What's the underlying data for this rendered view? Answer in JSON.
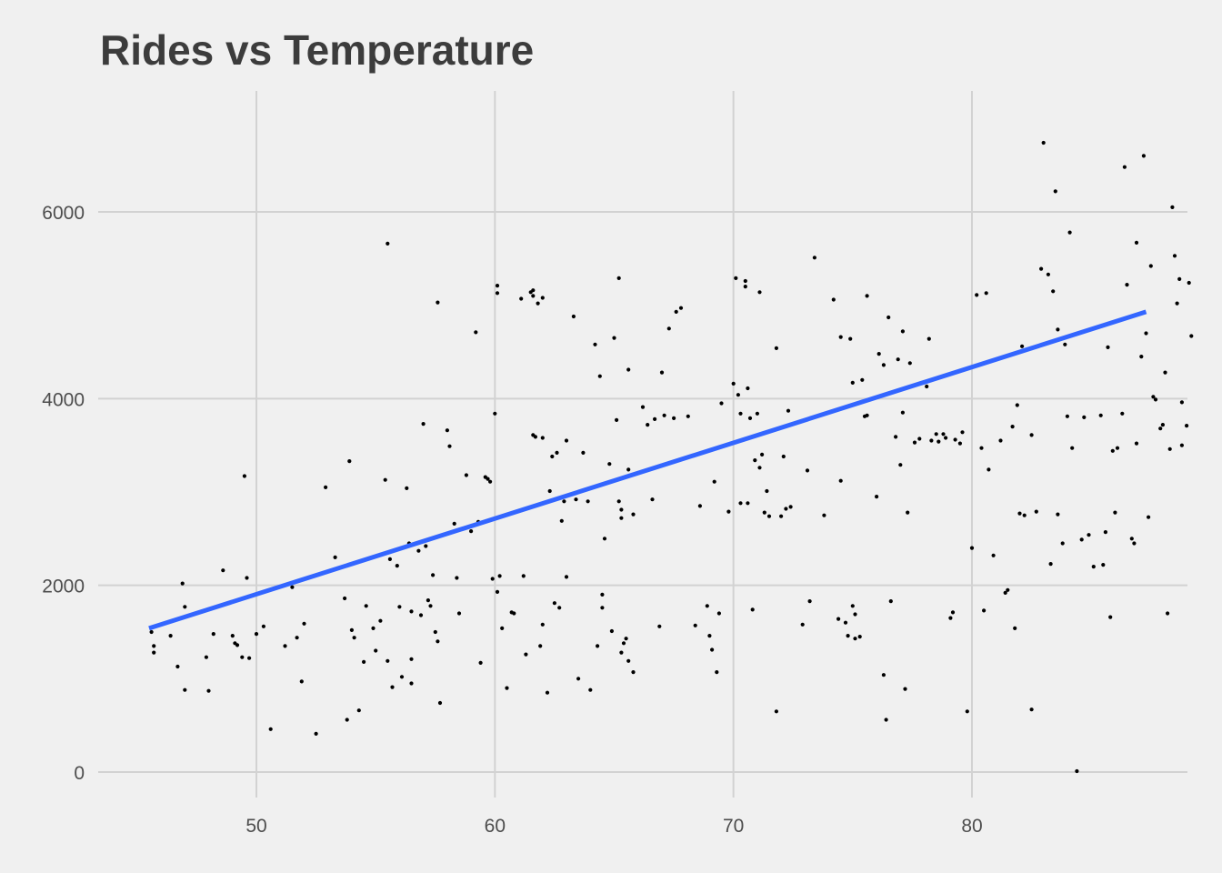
{
  "chart_data": {
    "type": "scatter",
    "title": "Rides vs Temperature",
    "xlabel": "",
    "ylabel": "",
    "xlim": [
      44,
      89
    ],
    "ylim": [
      -250,
      7550
    ],
    "x_ticks": [
      50,
      60,
      70,
      80
    ],
    "y_ticks": [
      0,
      2000,
      4000,
      6000
    ],
    "grid": true,
    "legend": "none",
    "colors": {
      "background": "#F0F0F0",
      "grid": "#D2D2D2",
      "points": "#000000",
      "trend": "#3366FF",
      "title": "#3C3C3C",
      "ticks": "#4D4D4D"
    },
    "trend_line": {
      "x": [
        45.5,
        87.3
      ],
      "y": [
        1540,
        4930
      ]
    },
    "points": [
      [
        45.6,
        1500
      ],
      [
        45.7,
        1350
      ],
      [
        45.7,
        1280
      ],
      [
        46.4,
        1460
      ],
      [
        46.7,
        1130
      ],
      [
        46.9,
        2020
      ],
      [
        47.0,
        1770
      ],
      [
        47.0,
        880
      ],
      [
        47.9,
        1230
      ],
      [
        48.0,
        870
      ],
      [
        48.2,
        1480
      ],
      [
        48.6,
        2160
      ],
      [
        49.0,
        1460
      ],
      [
        49.1,
        1380
      ],
      [
        49.2,
        1360
      ],
      [
        49.4,
        1230
      ],
      [
        49.5,
        3170
      ],
      [
        49.6,
        2080
      ],
      [
        49.7,
        1220
      ],
      [
        50.0,
        1480
      ],
      [
        50.3,
        1560
      ],
      [
        50.6,
        460
      ],
      [
        51.2,
        1350
      ],
      [
        51.5,
        1980
      ],
      [
        51.7,
        1440
      ],
      [
        51.9,
        970
      ],
      [
        52.0,
        1590
      ],
      [
        52.5,
        410
      ],
      [
        52.9,
        3050
      ],
      [
        53.3,
        2300
      ],
      [
        53.7,
        1860
      ],
      [
        53.8,
        560
      ],
      [
        53.9,
        3330
      ],
      [
        54.0,
        1520
      ],
      [
        54.1,
        1440
      ],
      [
        54.3,
        660
      ],
      [
        54.5,
        1180
      ],
      [
        54.6,
        1780
      ],
      [
        54.9,
        1540
      ],
      [
        55.0,
        1300
      ],
      [
        55.2,
        1620
      ],
      [
        55.4,
        3130
      ],
      [
        55.5,
        1190
      ],
      [
        55.5,
        5660
      ],
      [
        55.6,
        2280
      ],
      [
        55.7,
        910
      ],
      [
        55.9,
        2210
      ],
      [
        56.0,
        1770
      ],
      [
        56.1,
        1020
      ],
      [
        56.3,
        3040
      ],
      [
        56.4,
        2450
      ],
      [
        56.5,
        1210
      ],
      [
        56.5,
        1720
      ],
      [
        56.5,
        950
      ],
      [
        56.8,
        2370
      ],
      [
        56.9,
        1680
      ],
      [
        57.0,
        3730
      ],
      [
        57.1,
        2420
      ],
      [
        57.2,
        1840
      ],
      [
        57.3,
        1780
      ],
      [
        57.4,
        2110
      ],
      [
        57.5,
        1500
      ],
      [
        57.6,
        5030
      ],
      [
        57.6,
        1400
      ],
      [
        57.7,
        740
      ],
      [
        58.0,
        3660
      ],
      [
        58.1,
        3490
      ],
      [
        58.3,
        2660
      ],
      [
        58.4,
        2080
      ],
      [
        58.5,
        1700
      ],
      [
        58.8,
        3180
      ],
      [
        59.0,
        2580
      ],
      [
        59.2,
        4710
      ],
      [
        59.3,
        2680
      ],
      [
        59.4,
        1170
      ],
      [
        59.6,
        3160
      ],
      [
        59.7,
        3140
      ],
      [
        59.8,
        3110
      ],
      [
        59.9,
        2070
      ],
      [
        60.0,
        3840
      ],
      [
        60.1,
        5210
      ],
      [
        60.1,
        5130
      ],
      [
        60.1,
        1930
      ],
      [
        60.2,
        2100
      ],
      [
        60.3,
        1540
      ],
      [
        60.5,
        900
      ],
      [
        60.7,
        1710
      ],
      [
        60.8,
        1700
      ],
      [
        61.1,
        5070
      ],
      [
        61.2,
        2100
      ],
      [
        61.3,
        1260
      ],
      [
        61.5,
        5140
      ],
      [
        61.6,
        5160
      ],
      [
        61.6,
        3610
      ],
      [
        61.6,
        5100
      ],
      [
        61.7,
        3590
      ],
      [
        61.8,
        5020
      ],
      [
        61.9,
        1350
      ],
      [
        62.0,
        5080
      ],
      [
        62.0,
        3580
      ],
      [
        62.0,
        1580
      ],
      [
        62.2,
        850
      ],
      [
        62.3,
        3010
      ],
      [
        62.4,
        3380
      ],
      [
        62.5,
        1810
      ],
      [
        62.6,
        3420
      ],
      [
        62.7,
        1760
      ],
      [
        62.8,
        2690
      ],
      [
        62.9,
        2900
      ],
      [
        63.0,
        2090
      ],
      [
        63.0,
        3550
      ],
      [
        63.3,
        4880
      ],
      [
        63.4,
        2920
      ],
      [
        63.5,
        1000
      ],
      [
        63.7,
        3420
      ],
      [
        63.9,
        2900
      ],
      [
        64.0,
        880
      ],
      [
        64.2,
        4580
      ],
      [
        64.3,
        1350
      ],
      [
        64.4,
        4240
      ],
      [
        64.5,
        1900
      ],
      [
        64.5,
        1760
      ],
      [
        64.6,
        2500
      ],
      [
        64.8,
        3300
      ],
      [
        64.9,
        1510
      ],
      [
        65.0,
        4650
      ],
      [
        65.1,
        3770
      ],
      [
        65.2,
        2900
      ],
      [
        65.2,
        5290
      ],
      [
        65.3,
        2810
      ],
      [
        65.3,
        2720
      ],
      [
        65.3,
        1280
      ],
      [
        65.4,
        1380
      ],
      [
        65.5,
        1430
      ],
      [
        65.6,
        1190
      ],
      [
        65.6,
        3240
      ],
      [
        65.6,
        4310
      ],
      [
        65.8,
        1070
      ],
      [
        65.8,
        2760
      ],
      [
        66.2,
        3910
      ],
      [
        66.4,
        3720
      ],
      [
        66.6,
        2920
      ],
      [
        66.7,
        3780
      ],
      [
        66.9,
        1560
      ],
      [
        67.0,
        4280
      ],
      [
        67.1,
        3820
      ],
      [
        67.3,
        4750
      ],
      [
        67.5,
        3790
      ],
      [
        67.6,
        4930
      ],
      [
        67.8,
        4970
      ],
      [
        68.1,
        3810
      ],
      [
        68.4,
        1570
      ],
      [
        68.6,
        2850
      ],
      [
        68.9,
        1780
      ],
      [
        69.0,
        1460
      ],
      [
        69.1,
        1310
      ],
      [
        69.2,
        3110
      ],
      [
        69.3,
        1070
      ],
      [
        69.4,
        1700
      ],
      [
        69.5,
        3950
      ],
      [
        69.8,
        2790
      ],
      [
        70.0,
        4160
      ],
      [
        70.1,
        5290
      ],
      [
        70.2,
        4040
      ],
      [
        70.3,
        2880
      ],
      [
        70.3,
        3840
      ],
      [
        70.5,
        5260
      ],
      [
        70.5,
        5200
      ],
      [
        70.6,
        4110
      ],
      [
        70.6,
        2880
      ],
      [
        70.7,
        3790
      ],
      [
        70.8,
        1740
      ],
      [
        70.9,
        3340
      ],
      [
        71.0,
        3840
      ],
      [
        71.1,
        3260
      ],
      [
        71.1,
        5140
      ],
      [
        71.2,
        3400
      ],
      [
        71.3,
        2780
      ],
      [
        71.4,
        3010
      ],
      [
        71.5,
        2740
      ],
      [
        71.8,
        650
      ],
      [
        71.8,
        4540
      ],
      [
        72.0,
        2740
      ],
      [
        72.1,
        3380
      ],
      [
        72.2,
        2820
      ],
      [
        72.3,
        3870
      ],
      [
        72.4,
        2840
      ],
      [
        72.9,
        1580
      ],
      [
        73.1,
        3230
      ],
      [
        73.2,
        1830
      ],
      [
        73.4,
        5510
      ],
      [
        73.8,
        2750
      ],
      [
        74.2,
        5060
      ],
      [
        74.4,
        1640
      ],
      [
        74.5,
        3120
      ],
      [
        74.5,
        4660
      ],
      [
        74.7,
        1600
      ],
      [
        74.8,
        1460
      ],
      [
        74.9,
        4640
      ],
      [
        75.0,
        4170
      ],
      [
        75.0,
        1780
      ],
      [
        75.1,
        1690
      ],
      [
        75.1,
        1430
      ],
      [
        75.3,
        1450
      ],
      [
        75.4,
        4200
      ],
      [
        75.5,
        3810
      ],
      [
        75.6,
        5100
      ],
      [
        75.6,
        3820
      ],
      [
        76.0,
        2950
      ],
      [
        76.1,
        4480
      ],
      [
        76.3,
        4360
      ],
      [
        76.3,
        1040
      ],
      [
        76.4,
        560
      ],
      [
        76.5,
        4870
      ],
      [
        76.6,
        1830
      ],
      [
        76.8,
        3590
      ],
      [
        76.9,
        4420
      ],
      [
        77.0,
        3290
      ],
      [
        77.1,
        3850
      ],
      [
        77.1,
        4720
      ],
      [
        77.2,
        890
      ],
      [
        77.3,
        2780
      ],
      [
        77.4,
        4380
      ],
      [
        77.6,
        3530
      ],
      [
        77.8,
        3570
      ],
      [
        78.1,
        4130
      ],
      [
        78.2,
        4640
      ],
      [
        78.3,
        3550
      ],
      [
        78.5,
        3620
      ],
      [
        78.6,
        3540
      ],
      [
        78.8,
        3620
      ],
      [
        78.9,
        3580
      ],
      [
        79.1,
        1650
      ],
      [
        79.2,
        1710
      ],
      [
        79.3,
        3560
      ],
      [
        79.5,
        3520
      ],
      [
        79.6,
        3640
      ],
      [
        79.8,
        650
      ],
      [
        80.0,
        2400
      ],
      [
        80.2,
        5110
      ],
      [
        80.4,
        3470
      ],
      [
        80.5,
        1730
      ],
      [
        80.6,
        5130
      ],
      [
        80.7,
        3240
      ],
      [
        80.9,
        2320
      ],
      [
        81.2,
        3550
      ],
      [
        81.4,
        1920
      ],
      [
        81.5,
        1950
      ],
      [
        81.7,
        3700
      ],
      [
        81.8,
        1540
      ],
      [
        81.9,
        3930
      ],
      [
        82.0,
        2770
      ],
      [
        82.1,
        4560
      ],
      [
        82.2,
        2750
      ],
      [
        82.5,
        3610
      ],
      [
        82.5,
        670
      ],
      [
        82.7,
        2790
      ],
      [
        82.9,
        5390
      ],
      [
        83.0,
        6740
      ],
      [
        83.2,
        5330
      ],
      [
        83.3,
        2230
      ],
      [
        83.4,
        5150
      ],
      [
        83.5,
        6220
      ],
      [
        83.6,
        2760
      ],
      [
        83.6,
        4740
      ],
      [
        83.8,
        2450
      ],
      [
        83.9,
        4580
      ],
      [
        84.0,
        3810
      ],
      [
        84.1,
        5780
      ],
      [
        84.2,
        3470
      ],
      [
        84.4,
        10
      ],
      [
        84.6,
        2490
      ],
      [
        84.7,
        3800
      ],
      [
        84.9,
        2540
      ],
      [
        85.1,
        2200
      ],
      [
        85.4,
        3820
      ],
      [
        85.5,
        2220
      ],
      [
        85.6,
        2570
      ],
      [
        85.7,
        4550
      ],
      [
        85.8,
        1660
      ],
      [
        85.9,
        3440
      ],
      [
        86.0,
        2780
      ],
      [
        86.1,
        3470
      ],
      [
        86.3,
        3840
      ],
      [
        86.4,
        6480
      ],
      [
        86.5,
        5220
      ],
      [
        86.7,
        2500
      ],
      [
        86.8,
        2450
      ],
      [
        86.9,
        5670
      ],
      [
        86.9,
        3520
      ],
      [
        87.1,
        4450
      ],
      [
        87.2,
        6600
      ],
      [
        87.3,
        4700
      ],
      [
        87.4,
        2730
      ],
      [
        87.5,
        5420
      ],
      [
        87.6,
        4020
      ],
      [
        87.7,
        3990
      ],
      [
        87.9,
        3680
      ],
      [
        88.0,
        3720
      ],
      [
        88.1,
        4280
      ],
      [
        88.2,
        1700
      ],
      [
        88.3,
        3460
      ],
      [
        88.4,
        6050
      ],
      [
        88.5,
        5530
      ],
      [
        88.6,
        5020
      ],
      [
        88.7,
        5280
      ],
      [
        88.8,
        3500
      ],
      [
        88.8,
        3960
      ],
      [
        89.0,
        3710
      ],
      [
        89.1,
        5240
      ],
      [
        89.2,
        4670
      ]
    ]
  }
}
